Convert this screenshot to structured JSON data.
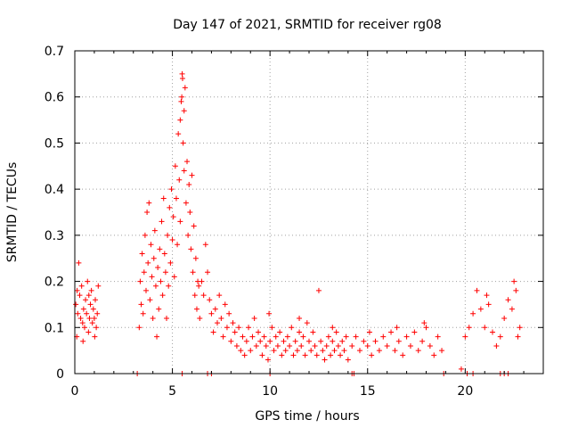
{
  "chart_data": {
    "type": "scatter",
    "title": "Day 147 of 2021, SRMTID for receiver rg08",
    "xlabel": "GPS time / hours",
    "ylabel": "SRMTID / TECUs",
    "xlim": [
      0,
      24
    ],
    "ylim": [
      0,
      0.7
    ],
    "xticks": [
      0,
      5,
      10,
      15,
      20
    ],
    "yticks": [
      0,
      0.1,
      0.2,
      0.3,
      0.4,
      0.5,
      0.6,
      0.7
    ],
    "xtick_labels": [
      "0",
      "5",
      "10",
      "15",
      "20"
    ],
    "ytick_labels": [
      "0",
      "0.1",
      "0.2",
      "0.3",
      "0.4",
      "0.5",
      "0.6",
      "0.7"
    ],
    "grid": true,
    "marker": "+",
    "color": "#ff0000",
    "series": [
      {
        "name": "SRMTID",
        "points": [
          [
            0.05,
            0.15
          ],
          [
            0.1,
            0.08
          ],
          [
            0.15,
            0.13
          ],
          [
            0.2,
            0.24
          ],
          [
            0.25,
            0.17
          ],
          [
            0.3,
            0.12
          ],
          [
            0.35,
            0.19
          ],
          [
            0.4,
            0.11
          ],
          [
            0.45,
            0.14
          ],
          [
            0.5,
            0.1
          ],
          [
            0.55,
            0.16
          ],
          [
            0.6,
            0.13
          ],
          [
            0.65,
            0.2
          ],
          [
            0.7,
            0.09
          ],
          [
            0.75,
            0.12
          ],
          [
            0.8,
            0.15
          ],
          [
            0.85,
            0.18
          ],
          [
            0.9,
            0.11
          ],
          [
            0.95,
            0.14
          ],
          [
            1.0,
            0.12
          ],
          [
            1.05,
            0.16
          ],
          [
            1.1,
            0.1
          ],
          [
            1.15,
            0.13
          ],
          [
            1.2,
            0.19
          ],
          [
            0.12,
            0.18
          ],
          [
            0.42,
            0.07
          ],
          [
            0.72,
            0.17
          ],
          [
            1.02,
            0.08
          ],
          [
            3.3,
            0.1
          ],
          [
            3.35,
            0.2
          ],
          [
            3.4,
            0.15
          ],
          [
            3.45,
            0.26
          ],
          [
            3.5,
            0.13
          ],
          [
            3.55,
            0.22
          ],
          [
            3.6,
            0.3
          ],
          [
            3.65,
            0.18
          ],
          [
            3.7,
            0.35
          ],
          [
            3.75,
            0.24
          ],
          [
            3.8,
            0.37
          ],
          [
            3.85,
            0.16
          ],
          [
            3.9,
            0.28
          ],
          [
            3.95,
            0.21
          ],
          [
            4.0,
            0.12
          ],
          [
            4.05,
            0.25
          ],
          [
            4.1,
            0.31
          ],
          [
            4.15,
            0.19
          ],
          [
            4.2,
            0.08
          ],
          [
            4.25,
            0.23
          ],
          [
            4.3,
            0.14
          ],
          [
            4.35,
            0.27
          ],
          [
            4.4,
            0.2
          ],
          [
            4.45,
            0.33
          ],
          [
            4.5,
            0.17
          ],
          [
            4.55,
            0.38
          ],
          [
            4.6,
            0.26
          ],
          [
            4.65,
            0.22
          ],
          [
            4.7,
            0.12
          ],
          [
            4.75,
            0.3
          ],
          [
            4.8,
            0.19
          ],
          [
            4.85,
            0.36
          ],
          [
            4.9,
            0.24
          ],
          [
            4.95,
            0.4
          ],
          [
            5.0,
            0.29
          ],
          [
            5.05,
            0.34
          ],
          [
            5.1,
            0.21
          ],
          [
            5.15,
            0.45
          ],
          [
            5.2,
            0.38
          ],
          [
            5.25,
            0.28
          ],
          [
            5.3,
            0.52
          ],
          [
            5.35,
            0.42
          ],
          [
            5.4,
            0.33
          ],
          [
            5.45,
            0.59
          ],
          [
            5.5,
            0.65
          ],
          [
            5.55,
            0.5
          ],
          [
            5.6,
            0.44
          ],
          [
            5.65,
            0.62
          ],
          [
            5.7,
            0.37
          ],
          [
            5.75,
            0.46
          ],
          [
            5.8,
            0.3
          ],
          [
            5.85,
            0.41
          ],
          [
            5.9,
            0.35
          ],
          [
            5.95,
            0.27
          ],
          [
            6.0,
            0.43
          ],
          [
            6.05,
            0.22
          ],
          [
            6.1,
            0.32
          ],
          [
            6.15,
            0.17
          ],
          [
            6.2,
            0.25
          ],
          [
            6.25,
            0.14
          ],
          [
            6.3,
            0.2
          ],
          [
            6.35,
            0.19
          ],
          [
            6.4,
            0.12
          ],
          [
            6.5,
            0.2
          ],
          [
            6.6,
            0.17
          ],
          [
            6.7,
            0.28
          ],
          [
            6.8,
            0.22
          ],
          [
            6.9,
            0.16
          ],
          [
            7.0,
            0.13
          ],
          [
            5.52,
            0.64
          ],
          [
            5.48,
            0.6
          ],
          [
            5.6,
            0.57
          ],
          [
            5.4,
            0.55
          ],
          [
            7.1,
            0.09
          ],
          [
            7.2,
            0.14
          ],
          [
            7.3,
            0.11
          ],
          [
            7.4,
            0.17
          ],
          [
            7.5,
            0.12
          ],
          [
            7.6,
            0.08
          ],
          [
            7.7,
            0.15
          ],
          [
            7.8,
            0.1
          ],
          [
            7.9,
            0.13
          ],
          [
            8.0,
            0.07
          ],
          [
            8.1,
            0.11
          ],
          [
            8.2,
            0.09
          ],
          [
            8.3,
            0.06
          ],
          [
            8.4,
            0.1
          ],
          [
            8.5,
            0.05
          ],
          [
            8.6,
            0.08
          ],
          [
            8.7,
            0.04
          ],
          [
            8.8,
            0.07
          ],
          [
            8.9,
            0.1
          ],
          [
            9.0,
            0.05
          ],
          [
            9.1,
            0.08
          ],
          [
            9.2,
            0.12
          ],
          [
            9.3,
            0.06
          ],
          [
            9.4,
            0.09
          ],
          [
            9.5,
            0.07
          ],
          [
            9.6,
            0.04
          ],
          [
            9.7,
            0.08
          ],
          [
            9.8,
            0.06
          ],
          [
            9.9,
            0.03
          ],
          [
            10.0,
            0.07
          ],
          [
            10.1,
            0.1
          ],
          [
            10.2,
            0.05
          ],
          [
            10.3,
            0.08
          ],
          [
            10.4,
            0.06
          ],
          [
            10.5,
            0.09
          ],
          [
            10.6,
            0.04
          ],
          [
            10.7,
            0.07
          ],
          [
            10.8,
            0.05
          ],
          [
            10.9,
            0.08
          ],
          [
            11.0,
            0.06
          ],
          [
            11.1,
            0.1
          ],
          [
            11.2,
            0.04
          ],
          [
            11.3,
            0.07
          ],
          [
            11.4,
            0.05
          ],
          [
            11.5,
            0.09
          ],
          [
            11.6,
            0.06
          ],
          [
            11.7,
            0.08
          ],
          [
            11.8,
            0.04
          ],
          [
            11.9,
            0.11
          ],
          [
            12.0,
            0.07
          ],
          [
            12.1,
            0.05
          ],
          [
            12.2,
            0.09
          ],
          [
            12.3,
            0.06
          ],
          [
            12.4,
            0.04
          ],
          [
            12.5,
            0.18
          ],
          [
            12.6,
            0.07
          ],
          [
            12.7,
            0.05
          ],
          [
            12.8,
            0.03
          ],
          [
            12.9,
            0.06
          ],
          [
            13.0,
            0.08
          ],
          [
            13.1,
            0.04
          ],
          [
            13.2,
            0.07
          ],
          [
            13.3,
            0.05
          ],
          [
            13.4,
            0.09
          ],
          [
            13.5,
            0.06
          ],
          [
            13.6,
            0.04
          ],
          [
            13.7,
            0.07
          ],
          [
            13.8,
            0.05
          ],
          [
            13.9,
            0.08
          ],
          [
            14.0,
            0.03
          ],
          [
            9.95,
            0.13
          ],
          [
            11.5,
            0.12
          ],
          [
            13.2,
            0.1
          ],
          [
            14.2,
            0.06
          ],
          [
            14.4,
            0.08
          ],
          [
            14.6,
            0.05
          ],
          [
            14.8,
            0.07
          ],
          [
            15.0,
            0.06
          ],
          [
            15.2,
            0.04
          ],
          [
            15.4,
            0.07
          ],
          [
            15.6,
            0.05
          ],
          [
            15.8,
            0.08
          ],
          [
            16.0,
            0.06
          ],
          [
            16.2,
            0.09
          ],
          [
            16.4,
            0.05
          ],
          [
            16.6,
            0.07
          ],
          [
            16.8,
            0.04
          ],
          [
            17.0,
            0.08
          ],
          [
            17.2,
            0.06
          ],
          [
            17.4,
            0.09
          ],
          [
            17.6,
            0.05
          ],
          [
            17.8,
            0.07
          ],
          [
            18.0,
            0.1
          ],
          [
            18.2,
            0.06
          ],
          [
            18.4,
            0.04
          ],
          [
            18.6,
            0.08
          ],
          [
            18.8,
            0.05
          ],
          [
            15.1,
            0.09
          ],
          [
            16.5,
            0.1
          ],
          [
            17.9,
            0.11
          ],
          [
            20.0,
            0.08
          ],
          [
            20.2,
            0.1
          ],
          [
            20.4,
            0.13
          ],
          [
            20.6,
            0.18
          ],
          [
            20.8,
            0.14
          ],
          [
            21.0,
            0.1
          ],
          [
            21.2,
            0.15
          ],
          [
            21.4,
            0.09
          ],
          [
            21.6,
            0.06
          ],
          [
            21.8,
            0.08
          ],
          [
            22.0,
            0.12
          ],
          [
            22.2,
            0.16
          ],
          [
            22.4,
            0.14
          ],
          [
            22.6,
            0.18
          ],
          [
            22.8,
            0.1
          ],
          [
            21.1,
            0.17
          ],
          [
            22.5,
            0.2
          ],
          [
            22.7,
            0.08
          ],
          [
            3.2,
            0.0
          ],
          [
            5.5,
            0.0
          ],
          [
            6.8,
            0.0
          ],
          [
            7.0,
            0.0
          ],
          [
            10.0,
            0.0
          ],
          [
            14.2,
            0.0
          ],
          [
            14.3,
            0.0
          ],
          [
            18.9,
            0.0
          ],
          [
            19.8,
            0.01
          ],
          [
            20.1,
            0.0
          ],
          [
            20.4,
            0.0
          ],
          [
            21.8,
            0.0
          ],
          [
            22.0,
            0.0
          ],
          [
            22.2,
            0.0
          ]
        ]
      }
    ]
  }
}
